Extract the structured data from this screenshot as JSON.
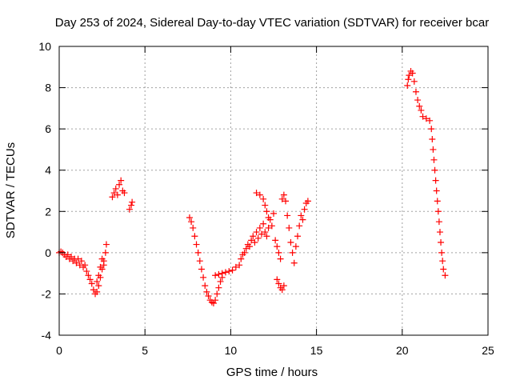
{
  "chart_data": {
    "type": "scatter",
    "title": "Day 253 of 2024, Sidereal Day-to-day VTEC variation (SDTVAR) for receiver bcar",
    "xlabel": "GPS time / hours",
    "ylabel": "SDTVAR / TECUs",
    "xlim": [
      0,
      25
    ],
    "ylim": [
      -4,
      10
    ],
    "xticks": [
      0,
      5,
      10,
      15,
      20,
      25
    ],
    "yticks": [
      -4,
      -2,
      0,
      2,
      4,
      6,
      8,
      10
    ],
    "grid": true,
    "marker": "plus",
    "color": "#ff0000",
    "series": [
      {
        "name": "SDTVAR",
        "points": [
          [
            0.0,
            0.0
          ],
          [
            0.1,
            0.05
          ],
          [
            0.2,
            0.0
          ],
          [
            0.3,
            -0.1
          ],
          [
            0.4,
            -0.2
          ],
          [
            0.5,
            -0.1
          ],
          [
            0.6,
            -0.3
          ],
          [
            0.7,
            -0.2
          ],
          [
            0.8,
            -0.4
          ],
          [
            0.9,
            -0.3
          ],
          [
            1.0,
            -0.5
          ],
          [
            1.1,
            -0.3
          ],
          [
            1.2,
            -0.6
          ],
          [
            1.3,
            -0.4
          ],
          [
            1.4,
            -0.7
          ],
          [
            1.5,
            -0.6
          ],
          [
            1.6,
            -0.9
          ],
          [
            1.7,
            -1.1
          ],
          [
            1.8,
            -1.3
          ],
          [
            1.9,
            -1.5
          ],
          [
            2.0,
            -1.8
          ],
          [
            2.1,
            -2.0
          ],
          [
            2.2,
            -1.9
          ],
          [
            2.3,
            -1.6
          ],
          [
            2.4,
            -1.2
          ],
          [
            2.5,
            -0.8
          ],
          [
            2.6,
            -0.4
          ],
          [
            2.7,
            0.0
          ],
          [
            2.75,
            0.4
          ],
          [
            2.2,
            -1.4
          ],
          [
            2.3,
            -1.1
          ],
          [
            2.4,
            -0.7
          ],
          [
            2.5,
            -0.3
          ],
          [
            2.6,
            -0.6
          ],
          [
            3.1,
            2.7
          ],
          [
            3.2,
            2.9
          ],
          [
            3.3,
            3.1
          ],
          [
            3.4,
            2.8
          ],
          [
            3.5,
            3.3
          ],
          [
            3.6,
            3.5
          ],
          [
            3.7,
            3.0
          ],
          [
            3.8,
            2.9
          ],
          [
            4.1,
            2.1
          ],
          [
            4.2,
            2.3
          ],
          [
            4.25,
            2.45
          ],
          [
            7.6,
            1.7
          ],
          [
            7.7,
            1.5
          ],
          [
            7.8,
            1.2
          ],
          [
            7.9,
            0.8
          ],
          [
            8.0,
            0.4
          ],
          [
            8.1,
            0.0
          ],
          [
            8.2,
            -0.4
          ],
          [
            8.3,
            -0.8
          ],
          [
            8.4,
            -1.2
          ],
          [
            8.5,
            -1.6
          ],
          [
            8.6,
            -1.9
          ],
          [
            8.7,
            -2.1
          ],
          [
            8.8,
            -2.3
          ],
          [
            8.9,
            -2.4
          ],
          [
            9.0,
            -2.45
          ],
          [
            9.1,
            -2.3
          ],
          [
            9.2,
            -2.0
          ],
          [
            9.3,
            -1.7
          ],
          [
            9.4,
            -1.4
          ],
          [
            9.5,
            -1.2
          ],
          [
            9.1,
            -1.1
          ],
          [
            9.3,
            -1.05
          ],
          [
            9.5,
            -1.0
          ],
          [
            9.7,
            -0.95
          ],
          [
            9.9,
            -0.9
          ],
          [
            10.1,
            -0.85
          ],
          [
            10.3,
            -0.7
          ],
          [
            10.5,
            -0.6
          ],
          [
            10.6,
            -0.3
          ],
          [
            10.7,
            -0.1
          ],
          [
            10.8,
            0.0
          ],
          [
            10.9,
            0.2
          ],
          [
            11.0,
            0.4
          ],
          [
            11.1,
            0.3
          ],
          [
            11.2,
            0.6
          ],
          [
            11.3,
            0.8
          ],
          [
            11.4,
            0.5
          ],
          [
            11.5,
            1.0
          ],
          [
            11.6,
            0.7
          ],
          [
            11.7,
            1.2
          ],
          [
            11.8,
            0.9
          ],
          [
            11.9,
            1.4
          ],
          [
            12.0,
            1.0
          ],
          [
            12.1,
            0.8
          ],
          [
            12.2,
            1.2
          ],
          [
            12.3,
            1.6
          ],
          [
            12.4,
            1.3
          ],
          [
            12.5,
            1.9
          ],
          [
            11.5,
            2.9
          ],
          [
            11.7,
            2.8
          ],
          [
            11.9,
            2.6
          ],
          [
            12.0,
            2.3
          ],
          [
            12.1,
            2.0
          ],
          [
            12.2,
            1.7
          ],
          [
            12.6,
            0.6
          ],
          [
            12.7,
            0.3
          ],
          [
            12.8,
            0.0
          ],
          [
            12.9,
            -0.3
          ],
          [
            12.7,
            -1.3
          ],
          [
            12.8,
            -1.5
          ],
          [
            12.9,
            -1.7
          ],
          [
            13.0,
            -1.8
          ],
          [
            13.1,
            -1.6
          ],
          [
            13.0,
            2.6
          ],
          [
            13.1,
            2.8
          ],
          [
            13.2,
            2.5
          ],
          [
            13.3,
            1.8
          ],
          [
            13.4,
            1.2
          ],
          [
            13.5,
            0.5
          ],
          [
            13.6,
            0.0
          ],
          [
            13.7,
            -0.5
          ],
          [
            13.8,
            0.3
          ],
          [
            13.9,
            0.8
          ],
          [
            14.0,
            1.3
          ],
          [
            14.1,
            1.8
          ],
          [
            14.2,
            1.6
          ],
          [
            14.3,
            2.1
          ],
          [
            14.4,
            2.4
          ],
          [
            14.5,
            2.5
          ],
          [
            20.3,
            8.1
          ],
          [
            20.35,
            8.4
          ],
          [
            20.4,
            8.6
          ],
          [
            20.5,
            8.8
          ],
          [
            20.6,
            8.7
          ],
          [
            20.7,
            8.3
          ],
          [
            20.8,
            7.8
          ],
          [
            20.9,
            7.4
          ],
          [
            21.0,
            7.1
          ],
          [
            21.1,
            6.9
          ],
          [
            21.2,
            6.6
          ],
          [
            21.4,
            6.5
          ],
          [
            21.6,
            6.4
          ],
          [
            21.7,
            6.0
          ],
          [
            21.75,
            5.5
          ],
          [
            21.8,
            5.0
          ],
          [
            21.85,
            4.5
          ],
          [
            21.9,
            4.0
          ],
          [
            21.95,
            3.5
          ],
          [
            22.0,
            3.0
          ],
          [
            22.05,
            2.5
          ],
          [
            22.1,
            2.0
          ],
          [
            22.15,
            1.5
          ],
          [
            22.2,
            1.0
          ],
          [
            22.25,
            0.5
          ],
          [
            22.3,
            0.0
          ],
          [
            22.35,
            -0.4
          ],
          [
            22.4,
            -0.8
          ],
          [
            22.5,
            -1.1
          ]
        ]
      }
    ]
  }
}
